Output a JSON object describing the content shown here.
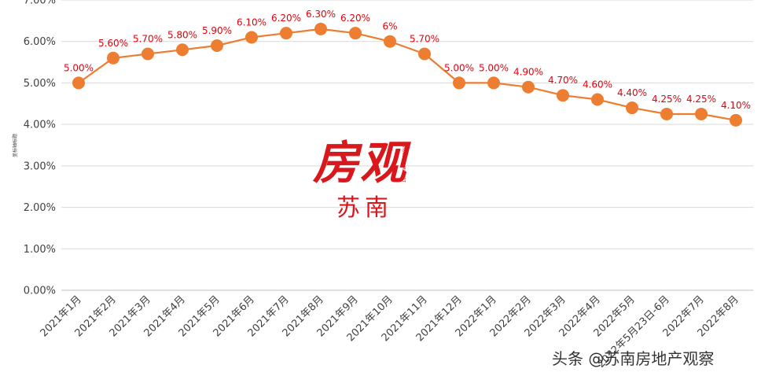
{
  "chart_data": {
    "type": "line",
    "title": "",
    "xlabel": "",
    "ylabel": "坐标轴标题",
    "ylim": [
      0,
      7
    ],
    "y_ticks": [
      "0.00%",
      "1.00%",
      "2.00%",
      "3.00%",
      "4.00%",
      "5.00%",
      "6.00%",
      "7.00%"
    ],
    "grid": true,
    "categories": [
      "2021年1月",
      "2021年2月",
      "2021年3月",
      "2021年4月",
      "2021年5月",
      "2021年6月",
      "2021年7月",
      "2021年8月",
      "2021年9月",
      "2021年10月",
      "2021年11月",
      "2021年12月",
      "2022年1月",
      "2022年2月",
      "2022年3月",
      "2022年4月",
      "2022年5月",
      "2022年5月23日-6月",
      "2022年7月",
      "2022年8月"
    ],
    "series": [
      {
        "values": [
          5.0,
          5.6,
          5.7,
          5.8,
          5.9,
          6.1,
          6.2,
          6.3,
          6.2,
          6.0,
          5.7,
          5.0,
          5.0,
          4.9,
          4.7,
          4.6,
          4.4,
          4.25,
          4.25,
          4.1
        ],
        "data_labels": [
          "5.00%",
          "5.60%",
          "5.70%",
          "5.80%",
          "5.90%",
          "6.10%",
          "6.20%",
          "6.30%",
          "6.20%",
          "6%",
          "5.70%",
          "5.00%",
          "5.00%",
          "4.90%",
          "4.70%",
          "4.60%",
          "4.40%",
          "4.25%",
          "4.25%",
          "4.10%"
        ]
      }
    ],
    "colors": {
      "line": "#ed7d31",
      "marker": "#ed7d31",
      "data_label": "#e8000b",
      "grid": "#d9d9d9",
      "axis_text": "#404040"
    }
  },
  "watermark": {
    "title": "房观",
    "subtitle": "苏南",
    "small": "HOUSING MARKET"
  },
  "credit": "头条 @苏南房地产观察"
}
